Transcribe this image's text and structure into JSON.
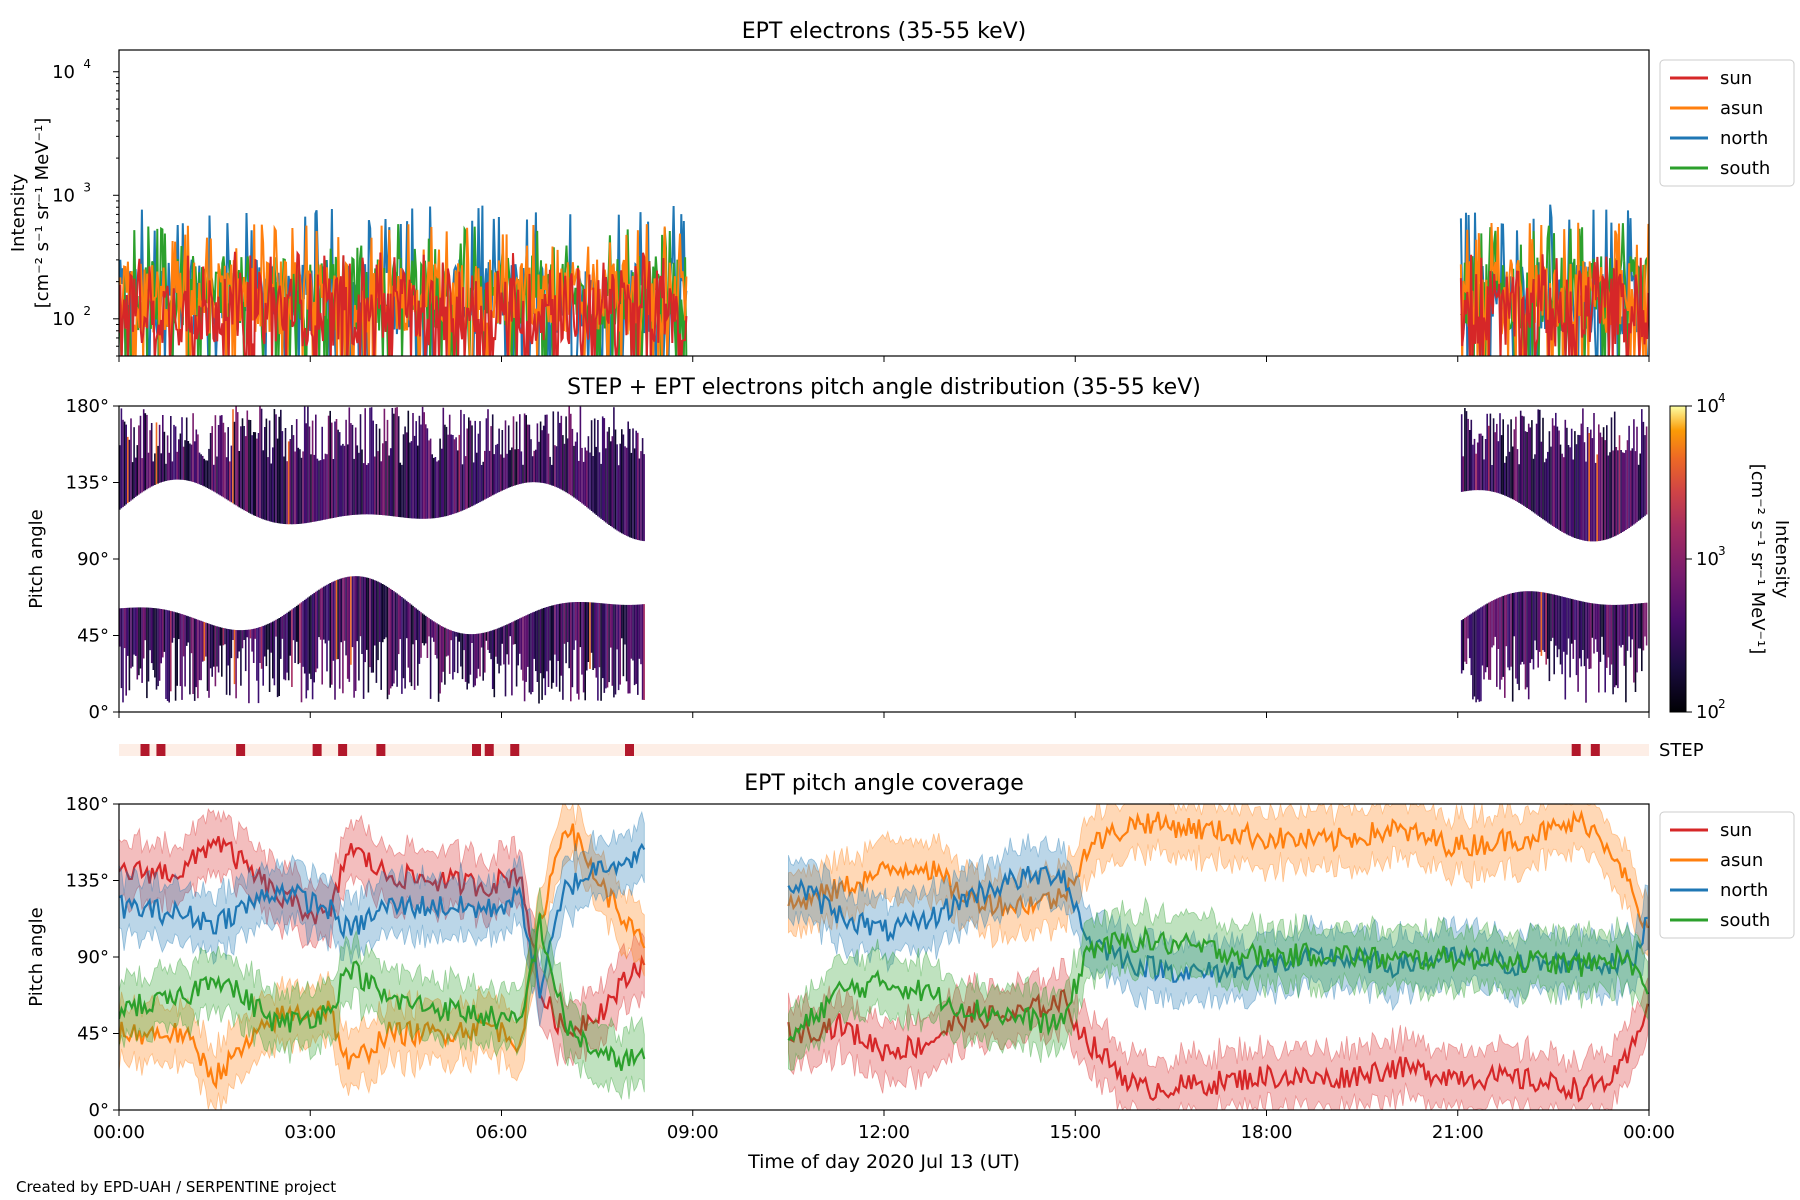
{
  "footer": "Created by EPD-UAH / SERPENTINE project",
  "colors": {
    "sun": "#d62728",
    "asun": "#ff7f0e",
    "north": "#1f77b4",
    "south": "#2ca02c",
    "step_bg": "#fdeee6",
    "step_mark": "#b2182b"
  },
  "chart_data": [
    {
      "type": "line",
      "title": "EPT electrons (35-55 keV)",
      "ylabel": [
        "Intensity",
        "[cm⁻² s⁻¹ sr⁻¹ MeV⁻¹]"
      ],
      "yscale": "log",
      "ylim": [
        50,
        15000
      ],
      "yticks": [
        {
          "v": 100,
          "base": "10",
          "exp": "2"
        },
        {
          "v": 1000,
          "base": "10",
          "exp": "3"
        },
        {
          "v": 10000,
          "base": "10",
          "exp": "4"
        }
      ],
      "xlim_hours": [
        0,
        24
      ],
      "legend": {
        "position": "outside-right",
        "entries": [
          "sun",
          "asun",
          "north",
          "south"
        ]
      },
      "data_intervals_hours": [
        [
          0.0,
          8.9
        ],
        [
          21.05,
          24.0
        ]
      ],
      "series": [
        {
          "name": "sun",
          "typical": 120,
          "peaks": 350
        },
        {
          "name": "asun",
          "typical": 150,
          "peaks": 600
        },
        {
          "name": "north",
          "typical": 150,
          "peaks": 850
        },
        {
          "name": "south",
          "typical": 160,
          "peaks": 600
        }
      ]
    },
    {
      "type": "heatmap",
      "title": "STEP + EPT electrons pitch angle distribution (35-55 keV)",
      "ylabel": "Pitch angle",
      "yticks": [
        "0°",
        "45°",
        "90°",
        "135°",
        "180°"
      ],
      "ylim": [
        0,
        180
      ],
      "colorbar": {
        "label": [
          "Intensity",
          "[cm⁻² s⁻¹ sr⁻¹ MeV⁻¹]"
        ],
        "scale": "log",
        "range": [
          100,
          10000
        ],
        "ticks": [
          {
            "v": 100,
            "base": "10",
            "exp": "2"
          },
          {
            "v": 1000,
            "base": "10",
            "exp": "3"
          },
          {
            "v": 10000,
            "base": "10",
            "exp": "4"
          }
        ],
        "colormap": "inferno"
      },
      "data_intervals_hours": [
        [
          0.0,
          8.25
        ],
        [
          21.05,
          23.95
        ]
      ],
      "step_label": "STEP",
      "step_marks_hours": [
        0.4,
        0.65,
        1.9,
        3.1,
        3.5,
        4.1,
        5.6,
        5.8,
        6.2,
        8.0,
        22.85,
        23.15
      ]
    },
    {
      "type": "area",
      "title": "EPT pitch angle coverage",
      "ylabel": "Pitch angle",
      "yticks": [
        "0°",
        "45°",
        "90°",
        "135°",
        "180°"
      ],
      "ylim": [
        0,
        180
      ],
      "xlabel": "Time of day 2020 Jul 13 (UT)",
      "xticks": [
        "00:00",
        "03:00",
        "06:00",
        "09:00",
        "12:00",
        "15:00",
        "18:00",
        "21:00",
        "00:00"
      ],
      "legend": {
        "position": "outside-right",
        "entries": [
          "sun",
          "asun",
          "north",
          "south"
        ]
      },
      "gap_hours": [
        8.25,
        10.5
      ],
      "series": [
        {
          "name": "sun",
          "x": [
            0,
            1,
            1.5,
            2.5,
            3.3,
            3.6,
            4.2,
            5.0,
            5.8,
            6.3,
            6.6,
            7.0,
            7.6,
            8.25,
            10.5,
            11.3,
            12.0,
            12.6,
            13.3,
            14.0,
            14.8,
            15.2,
            16.0,
            17.0,
            18.0,
            19.0,
            20.0,
            21.0,
            22.0,
            23.0,
            23.5,
            23.8,
            24.0
          ],
          "y": [
            140,
            140,
            160,
            125,
            112,
            155,
            138,
            135,
            132,
            140,
            70,
            45,
            60,
            90,
            45,
            50,
            35,
            38,
            55,
            55,
            65,
            40,
            12,
            15,
            20,
            18,
            25,
            20,
            18,
            12,
            20,
            40,
            70
          ]
        },
        {
          "name": "asun",
          "x": [
            0,
            1,
            1.5,
            2.5,
            3.3,
            3.6,
            4.2,
            5.0,
            5.8,
            6.3,
            6.6,
            7.0,
            7.6,
            8.25,
            10.5,
            11.3,
            12.0,
            12.6,
            13.3,
            14.0,
            14.8,
            15.2,
            16.0,
            17.0,
            18.0,
            19.0,
            20.0,
            21.0,
            22.0,
            23.0,
            23.5,
            23.8,
            24.0
          ],
          "y": [
            45,
            45,
            20,
            55,
            60,
            25,
            45,
            45,
            50,
            40,
            110,
            170,
            130,
            95,
            120,
            130,
            140,
            145,
            125,
            120,
            125,
            155,
            170,
            165,
            160,
            158,
            165,
            155,
            160,
            170,
            150,
            120,
            100
          ]
        },
        {
          "name": "north",
          "x": [
            0,
            1,
            1.5,
            2.5,
            3.3,
            3.6,
            4.2,
            5.0,
            5.8,
            6.3,
            6.6,
            7.0,
            7.6,
            8.25,
            10.5,
            11.3,
            12.0,
            12.6,
            13.3,
            14.0,
            14.8,
            15.2,
            16.0,
            17.0,
            18.0,
            19.0,
            20.0,
            21.0,
            22.0,
            23.0,
            23.5,
            23.8,
            24.0
          ],
          "y": [
            120,
            115,
            110,
            130,
            118,
            105,
            120,
            120,
            118,
            125,
            70,
            130,
            145,
            150,
            135,
            115,
            105,
            110,
            125,
            135,
            140,
            100,
            85,
            80,
            85,
            90,
            85,
            90,
            85,
            88,
            85,
            90,
            120
          ]
        },
        {
          "name": "south",
          "x": [
            0,
            1,
            1.5,
            2.5,
            3.3,
            3.6,
            4.2,
            5.0,
            5.8,
            6.3,
            6.6,
            7.0,
            7.6,
            8.25,
            10.5,
            11.3,
            12.0,
            12.6,
            13.3,
            14.0,
            14.8,
            15.2,
            16.0,
            17.0,
            18.0,
            19.0,
            20.0,
            21.0,
            22.0,
            23.0,
            23.5,
            23.8,
            24.0
          ],
          "y": [
            60,
            65,
            80,
            50,
            58,
            85,
            65,
            60,
            55,
            50,
            110,
            50,
            30,
            30,
            40,
            70,
            75,
            70,
            60,
            55,
            50,
            95,
            100,
            95,
            90,
            92,
            88,
            90,
            88,
            85,
            90,
            85,
            60
          ]
        }
      ]
    }
  ]
}
